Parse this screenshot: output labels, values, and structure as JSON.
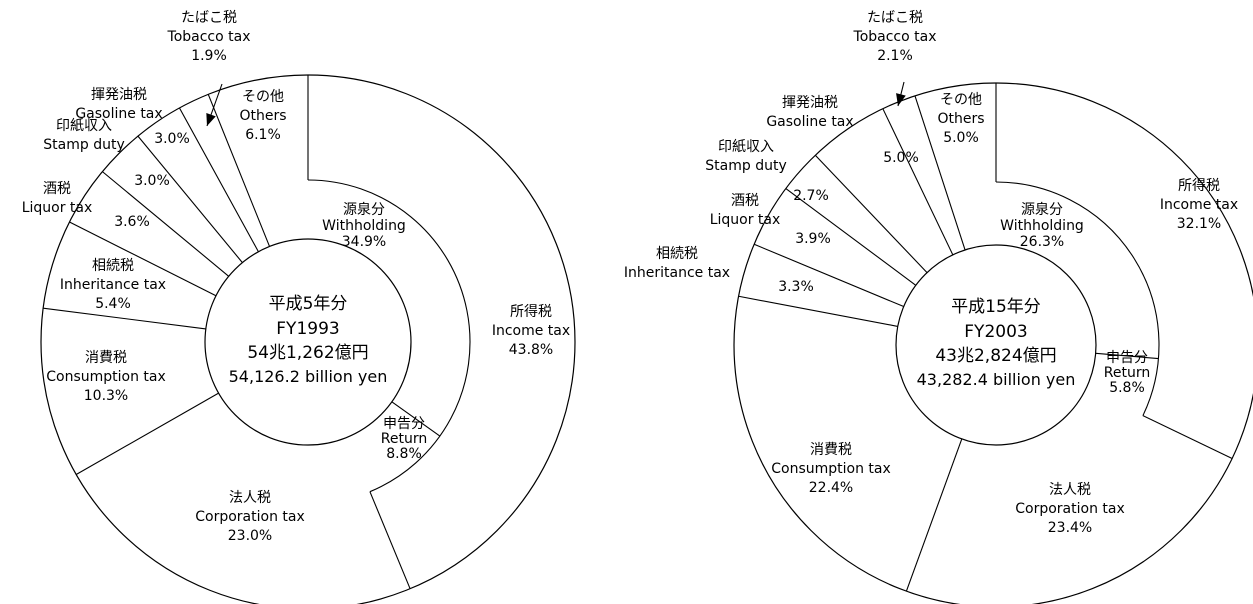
{
  "chart_data": [
    {
      "type": "pie",
      "center_label": [
        "平成5年分",
        "FY1993",
        "54兆1,262億円",
        "54,126.2 billion yen"
      ],
      "slices": [
        {
          "ja": "所得税",
          "en": "Income tax",
          "value": 43.8,
          "value_text": "43.8%"
        },
        {
          "ja": "法人税",
          "en": "Corporation tax",
          "value": 23.0,
          "value_text": "23.0%"
        },
        {
          "ja": "消費税",
          "en": "Consumption tax",
          "value": 10.3,
          "value_text": "10.3%"
        },
        {
          "ja": "相続税",
          "en": "Inheritance tax",
          "value": 5.4,
          "value_text": "5.4%"
        },
        {
          "ja": "酒税",
          "en": "Liquor tax",
          "value": 3.6,
          "value_text": "3.6%"
        },
        {
          "ja": "印紙収入",
          "en": "Stamp duty",
          "value": 3.0,
          "value_text": "3.0%"
        },
        {
          "ja": "揮発油税",
          "en": "Gasoline tax",
          "value": 3.0,
          "value_text": "3.0%"
        },
        {
          "ja": "たばこ税",
          "en": "Tobacco tax",
          "value": 1.9,
          "value_text": "1.9%"
        },
        {
          "ja": "その他",
          "en": "Others",
          "value": 6.1,
          "value_text": "6.1%"
        }
      ],
      "inner_slices": [
        {
          "ja": "源泉分",
          "en": "Withholding",
          "value": 34.9,
          "value_text": "34.9%"
        },
        {
          "ja": "申告分",
          "en": "Return",
          "value": 8.8,
          "value_text": "8.8%"
        }
      ]
    },
    {
      "type": "pie",
      "center_label": [
        "平成15年分",
        "FY2003",
        "43兆2,824億円",
        "43,282.4 billion yen"
      ],
      "slices": [
        {
          "ja": "所得税",
          "en": "Income tax",
          "value": 32.1,
          "value_text": "32.1%"
        },
        {
          "ja": "法人税",
          "en": "Corporation tax",
          "value": 23.4,
          "value_text": "23.4%"
        },
        {
          "ja": "消費税",
          "en": "Consumption tax",
          "value": 22.4,
          "value_text": "22.4%"
        },
        {
          "ja": "相続税",
          "en": "Inheritance tax",
          "value": 3.3,
          "value_text": "3.3%"
        },
        {
          "ja": "酒税",
          "en": "Liquor tax",
          "value": 3.9,
          "value_text": "3.9%"
        },
        {
          "ja": "印紙収入",
          "en": "Stamp duty",
          "value": 2.7,
          "value_text": "2.7%"
        },
        {
          "ja": "揮発油税",
          "en": "Gasoline tax",
          "value": 5.0,
          "value_text": "5.0%"
        },
        {
          "ja": "たばこ税",
          "en": "Tobacco tax",
          "value": 2.1,
          "value_text": "2.1%"
        },
        {
          "ja": "その他",
          "en": "Others",
          "value": 5.0,
          "value_text": "5.0%"
        }
      ],
      "inner_slices": [
        {
          "ja": "源泉分",
          "en": "Withholding",
          "value": 26.3,
          "value_text": "26.3%"
        },
        {
          "ja": "申告分",
          "en": "Return",
          "value": 5.8,
          "value_text": "5.8%"
        }
      ]
    }
  ]
}
